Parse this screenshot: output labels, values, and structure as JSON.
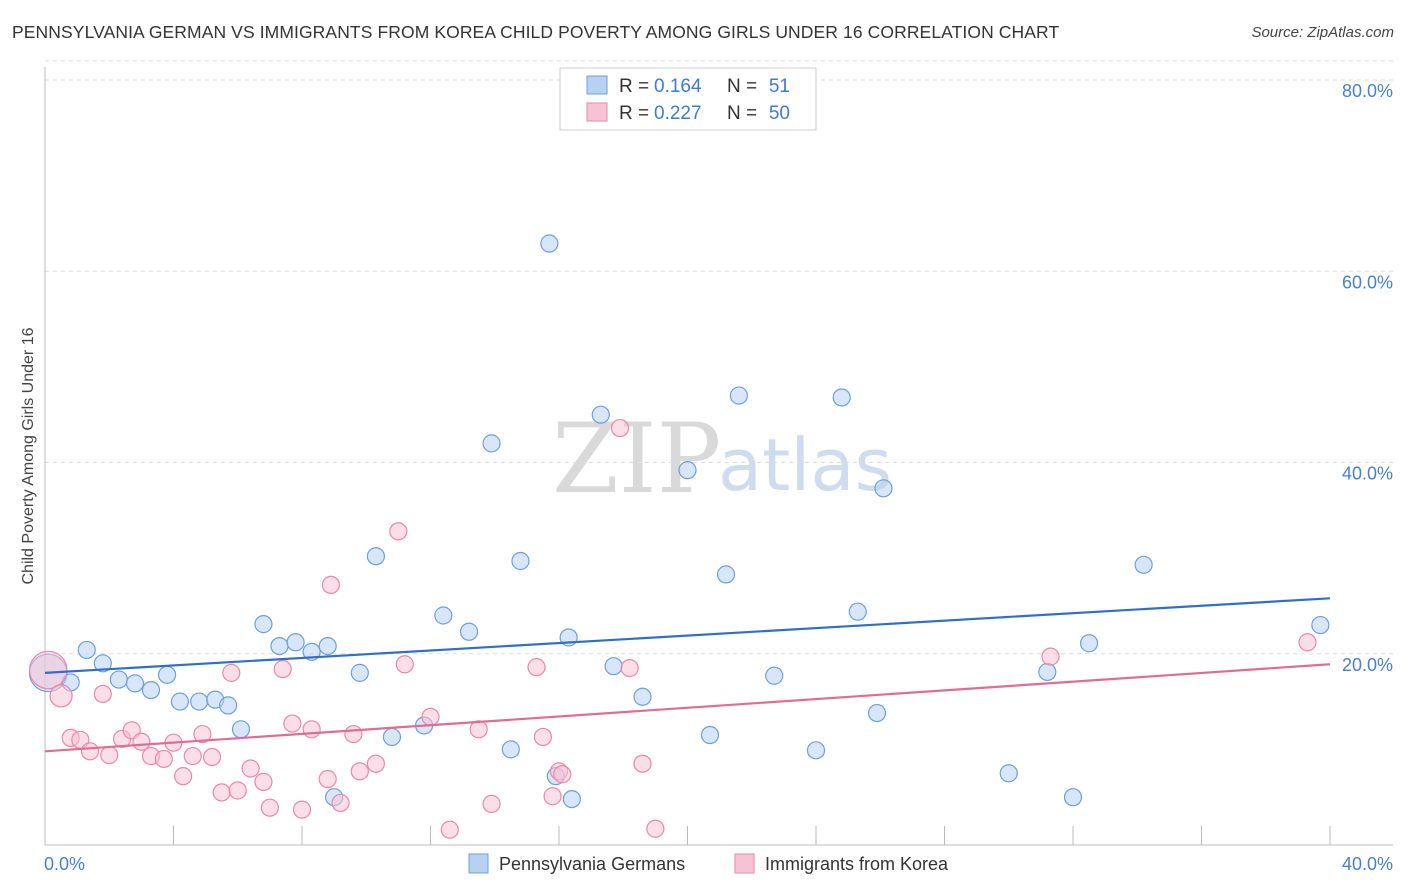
{
  "title": "PENNSYLVANIA GERMAN VS IMMIGRANTS FROM KOREA CHILD POVERTY AMONG GIRLS UNDER 16 CORRELATION CHART",
  "source": "Source: ZipAtlas.com",
  "watermark": {
    "zip": "ZIP",
    "atlas": "atlas"
  },
  "legend": {
    "series1": {
      "r_label": "R =",
      "r_value": "0.164",
      "n_label": "N =",
      "n_value": "51"
    },
    "series2": {
      "r_label": "R =",
      "r_value": "0.227",
      "n_label": "N =",
      "n_value": "50"
    }
  },
  "colors": {
    "blue_fill": "#b7d1f2",
    "blue_stroke": "#6f9fd8",
    "blue_line": "#2f6fca",
    "pink_fill": "#f7c3d4",
    "pink_stroke": "#e889a8",
    "pink_line": "#e06c94",
    "grid": "#dddddd",
    "axis": "#bbbbbb"
  },
  "chart_data": {
    "type": "scatter",
    "title": "PENNSYLVANIA GERMAN VS IMMIGRANTS FROM KOREA CHILD POVERTY AMONG GIRLS UNDER 16 CORRELATION CHART",
    "xlabel": "",
    "ylabel": "Child Poverty Among Girls Under 16",
    "xlim": [
      0,
      40
    ],
    "ylim": [
      0,
      82
    ],
    "x_tick_labels": [
      "0.0%",
      "40.0%"
    ],
    "y_ticks": [
      20,
      40,
      60,
      80
    ],
    "y_tick_labels": [
      "20.0%",
      "40.0%",
      "60.0%",
      "80.0%"
    ],
    "grid": true,
    "legend_position": "top-center",
    "series": [
      {
        "name": "Pennsylvania Germans",
        "color": "#b7d1f2",
        "trend": {
          "x": [
            0,
            40
          ],
          "y": [
            18.0,
            25.8
          ]
        },
        "points": [
          {
            "x": 0.1,
            "y": 18.0,
            "s": 2.2
          },
          {
            "x": 0.8,
            "y": 17.0
          },
          {
            "x": 1.3,
            "y": 20.4
          },
          {
            "x": 1.8,
            "y": 19.0
          },
          {
            "x": 2.3,
            "y": 17.3
          },
          {
            "x": 2.8,
            "y": 16.9
          },
          {
            "x": 3.3,
            "y": 16.2
          },
          {
            "x": 3.8,
            "y": 17.8
          },
          {
            "x": 4.2,
            "y": 15.0
          },
          {
            "x": 4.8,
            "y": 15.0
          },
          {
            "x": 5.3,
            "y": 15.2
          },
          {
            "x": 5.7,
            "y": 14.6
          },
          {
            "x": 6.1,
            "y": 12.1
          },
          {
            "x": 6.8,
            "y": 23.1
          },
          {
            "x": 7.3,
            "y": 20.8
          },
          {
            "x": 7.8,
            "y": 21.2
          },
          {
            "x": 8.3,
            "y": 20.2
          },
          {
            "x": 8.8,
            "y": 20.8
          },
          {
            "x": 9.0,
            "y": 5.0
          },
          {
            "x": 9.8,
            "y": 18.0
          },
          {
            "x": 10.3,
            "y": 30.2
          },
          {
            "x": 10.8,
            "y": 11.3
          },
          {
            "x": 11.8,
            "y": 12.5
          },
          {
            "x": 12.4,
            "y": 24.0
          },
          {
            "x": 13.2,
            "y": 22.3
          },
          {
            "x": 13.9,
            "y": 42.0
          },
          {
            "x": 14.5,
            "y": 10.0
          },
          {
            "x": 14.8,
            "y": 29.7
          },
          {
            "x": 15.7,
            "y": 62.9
          },
          {
            "x": 15.9,
            "y": 7.2
          },
          {
            "x": 16.4,
            "y": 4.8
          },
          {
            "x": 16.3,
            "y": 21.7
          },
          {
            "x": 17.3,
            "y": 45.0
          },
          {
            "x": 17.7,
            "y": 18.7
          },
          {
            "x": 18.6,
            "y": 15.5
          },
          {
            "x": 20.0,
            "y": 39.2
          },
          {
            "x": 20.7,
            "y": 11.5
          },
          {
            "x": 21.2,
            "y": 28.3
          },
          {
            "x": 21.6,
            "y": 47.0
          },
          {
            "x": 22.7,
            "y": 17.7
          },
          {
            "x": 24.0,
            "y": 9.9
          },
          {
            "x": 24.8,
            "y": 46.8
          },
          {
            "x": 25.3,
            "y": 24.4
          },
          {
            "x": 25.9,
            "y": 13.8
          },
          {
            "x": 26.1,
            "y": 37.3
          },
          {
            "x": 30.0,
            "y": 7.5
          },
          {
            "x": 31.2,
            "y": 18.1
          },
          {
            "x": 32.0,
            "y": 5.0
          },
          {
            "x": 32.5,
            "y": 21.1
          },
          {
            "x": 34.2,
            "y": 29.3
          },
          {
            "x": 39.7,
            "y": 23.0
          }
        ]
      },
      {
        "name": "Immigrants from Korea",
        "color": "#f7c3d4",
        "trend": {
          "x": [
            0,
            40
          ],
          "y": [
            9.8,
            18.9
          ]
        },
        "points": [
          {
            "x": 0.1,
            "y": 18.3,
            "s": 2.2
          },
          {
            "x": 0.5,
            "y": 15.6,
            "s": 1.3
          },
          {
            "x": 0.8,
            "y": 11.2
          },
          {
            "x": 1.1,
            "y": 11.0
          },
          {
            "x": 1.4,
            "y": 9.8
          },
          {
            "x": 1.8,
            "y": 15.8
          },
          {
            "x": 2.0,
            "y": 9.4
          },
          {
            "x": 2.4,
            "y": 11.1
          },
          {
            "x": 2.7,
            "y": 12.0
          },
          {
            "x": 3.0,
            "y": 10.8
          },
          {
            "x": 3.3,
            "y": 9.3
          },
          {
            "x": 3.7,
            "y": 9.0
          },
          {
            "x": 4.0,
            "y": 10.7
          },
          {
            "x": 4.3,
            "y": 7.2
          },
          {
            "x": 4.6,
            "y": 9.3
          },
          {
            "x": 4.9,
            "y": 11.6
          },
          {
            "x": 5.2,
            "y": 9.2
          },
          {
            "x": 5.5,
            "y": 5.5
          },
          {
            "x": 5.8,
            "y": 18.0
          },
          {
            "x": 6.0,
            "y": 5.7
          },
          {
            "x": 6.4,
            "y": 8.0
          },
          {
            "x": 6.8,
            "y": 6.6
          },
          {
            "x": 7.0,
            "y": 3.9
          },
          {
            "x": 7.4,
            "y": 18.4
          },
          {
            "x": 7.7,
            "y": 12.7
          },
          {
            "x": 8.0,
            "y": 3.7
          },
          {
            "x": 8.3,
            "y": 12.1
          },
          {
            "x": 8.8,
            "y": 6.9
          },
          {
            "x": 8.9,
            "y": 27.2
          },
          {
            "x": 9.2,
            "y": 4.4
          },
          {
            "x": 9.6,
            "y": 11.6
          },
          {
            "x": 9.8,
            "y": 7.7
          },
          {
            "x": 10.3,
            "y": 8.5
          },
          {
            "x": 11.0,
            "y": 32.8
          },
          {
            "x": 11.2,
            "y": 18.9
          },
          {
            "x": 12.0,
            "y": 13.4
          },
          {
            "x": 12.6,
            "y": 1.6
          },
          {
            "x": 13.5,
            "y": 12.1
          },
          {
            "x": 13.9,
            "y": 4.3
          },
          {
            "x": 15.3,
            "y": 18.6
          },
          {
            "x": 15.5,
            "y": 11.3
          },
          {
            "x": 15.8,
            "y": 5.1
          },
          {
            "x": 16.0,
            "y": 7.7
          },
          {
            "x": 16.1,
            "y": 7.4
          },
          {
            "x": 17.9,
            "y": 43.6
          },
          {
            "x": 18.2,
            "y": 18.5
          },
          {
            "x": 18.6,
            "y": 8.5
          },
          {
            "x": 19.0,
            "y": 1.7
          },
          {
            "x": 31.3,
            "y": 19.7
          },
          {
            "x": 39.3,
            "y": 21.2
          }
        ]
      }
    ]
  },
  "bottom_legend": {
    "item1": "Pennsylvania Germans",
    "item2": "Immigrants from Korea"
  }
}
